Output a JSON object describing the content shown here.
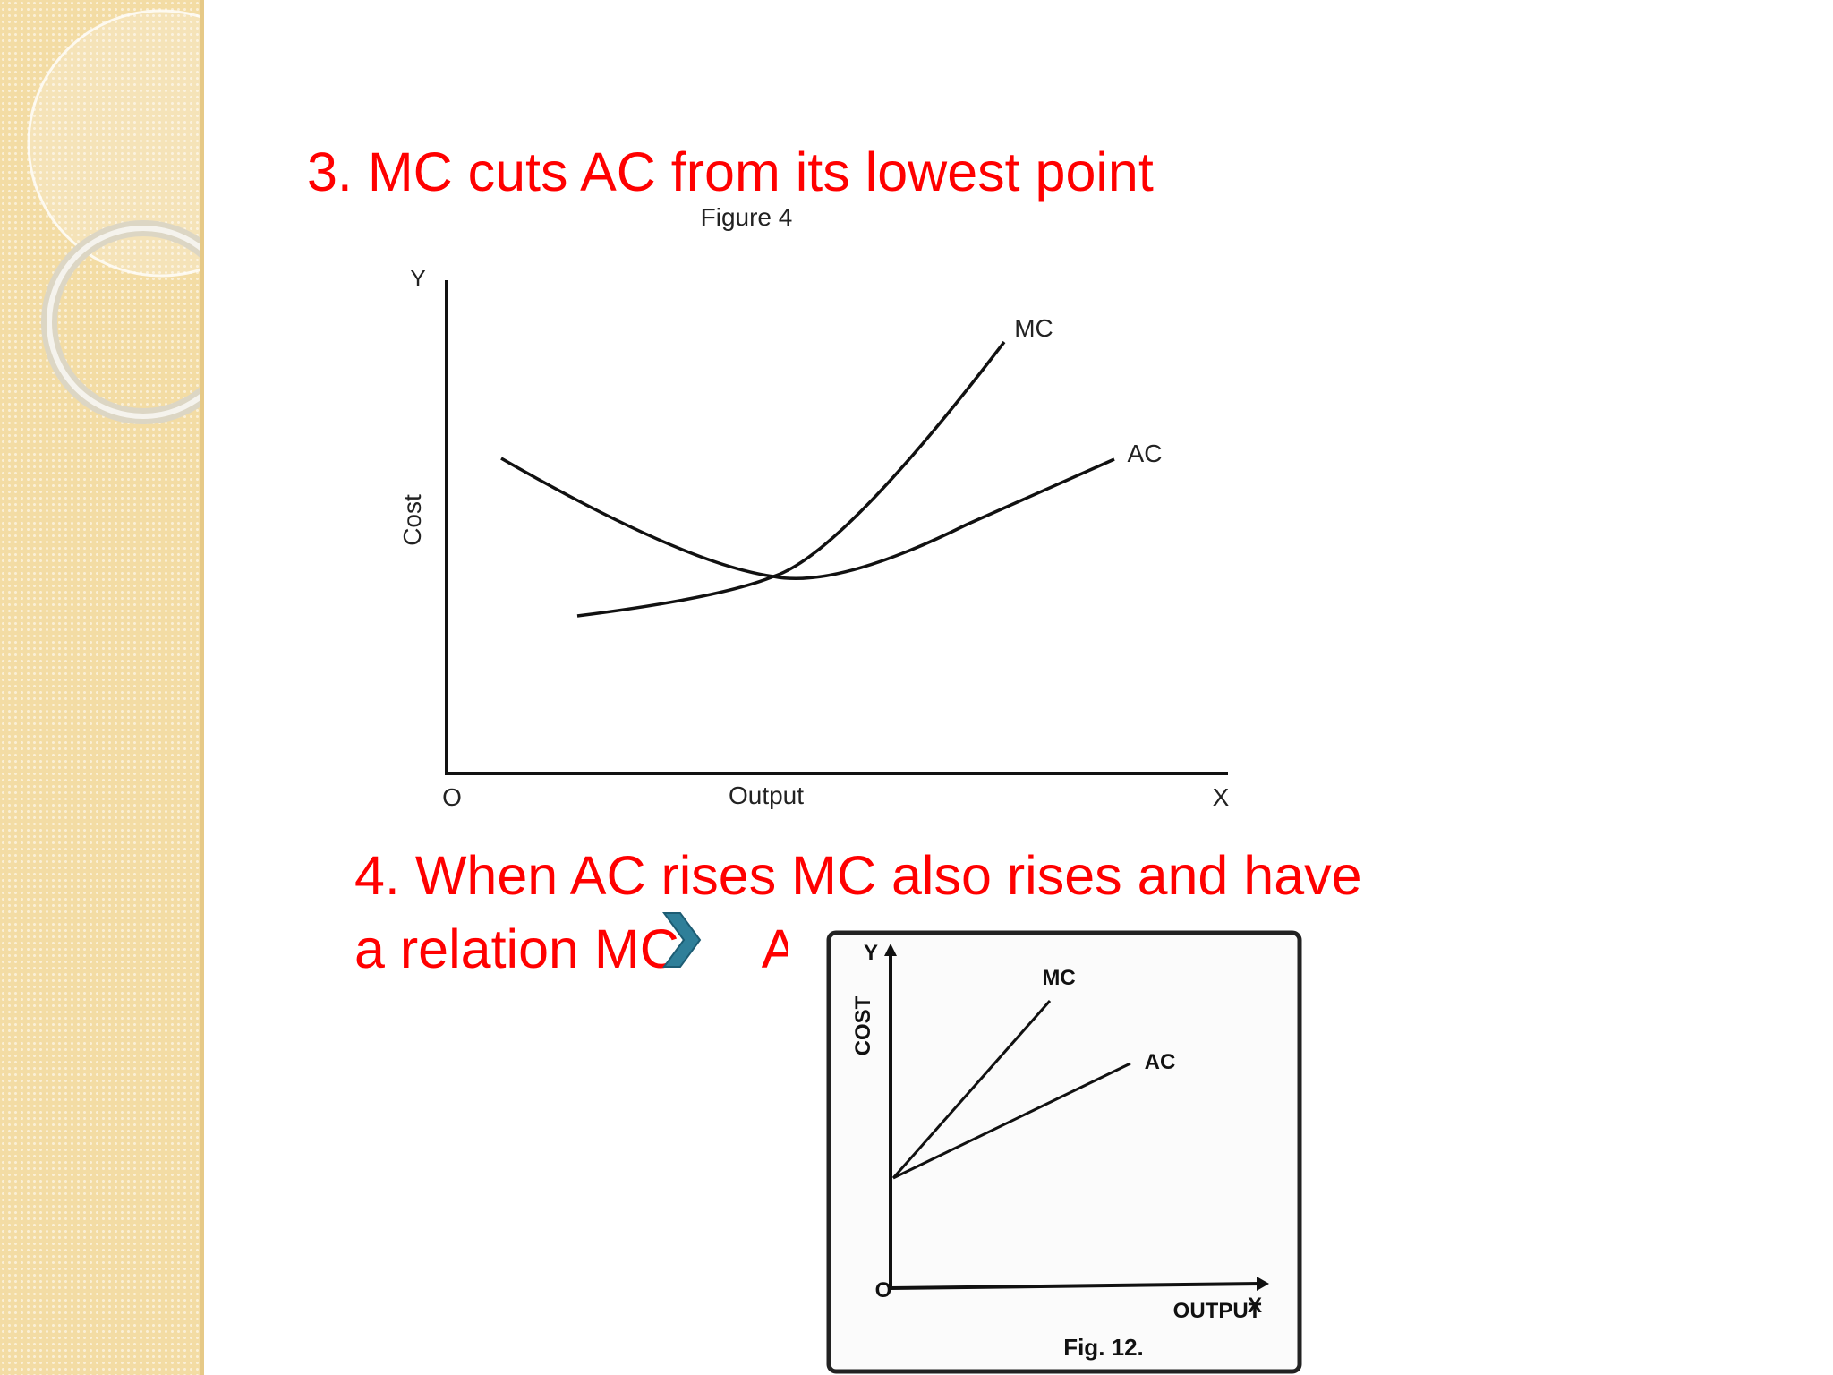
{
  "slide": {
    "heading_3": "3. MC cuts AC from its lowest point",
    "heading_4_line1": "4. When AC rises MC also rises and have",
    "heading_4_line2_a": "a relation M",
    "heading_4_line2_b": "C",
    "heading_4_line2_c": "A",
    "bullet_icon": "chevron-right-icon",
    "accent_color": "#ff0000",
    "sidebar_color": "#f3dca4"
  },
  "figure_4": {
    "caption": "Figure 4",
    "y_axis_letter": "Y",
    "x_axis_letter": "X",
    "origin": "O",
    "y_label": "Cost",
    "x_label": "Output",
    "curves": [
      {
        "label": "MC",
        "shape": "rising from low, cutting AC at its minimum, then rising steeply"
      },
      {
        "label": "AC",
        "shape": "U-shaped"
      }
    ]
  },
  "figure_12": {
    "caption": "Fig. 12.",
    "y_axis_letter": "Y",
    "x_axis_letter": "X",
    "origin": "O",
    "y_label": "COST",
    "x_label": "OUTPUT",
    "curves": [
      {
        "label": "MC",
        "shape": "straight line rising steeply"
      },
      {
        "label": "AC",
        "shape": "straight line rising gently"
      }
    ]
  }
}
